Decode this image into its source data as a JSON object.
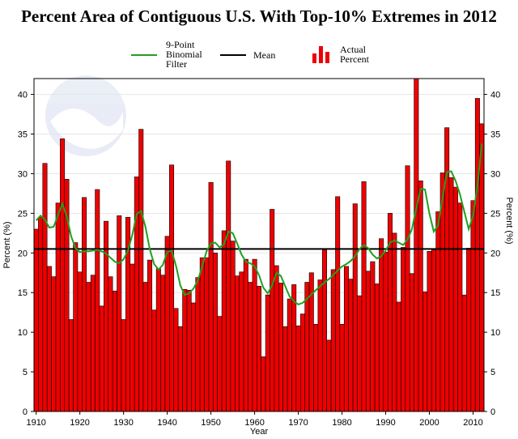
{
  "chart_data": {
    "type": "bar",
    "title": "Percent Area of Contiguous U.S. With Top-10% Extremes in 2012",
    "xlabel": "Year",
    "ylabel_left": "Percent (%)",
    "ylabel_right": "Percent (%)",
    "xlim": [
      1910,
      2012
    ],
    "ylim": [
      0,
      42
    ],
    "x_ticks": [
      1910,
      1920,
      1930,
      1940,
      1950,
      1960,
      1970,
      1980,
      1990,
      2000,
      2010
    ],
    "y_ticks": [
      0,
      5,
      10,
      15,
      20,
      25,
      30,
      35,
      40
    ],
    "grid": true,
    "legend": {
      "position": "top",
      "entries": [
        {
          "label": "9-Point\nBinomial\nFilter",
          "color": "#20a020",
          "kind": "line"
        },
        {
          "label": "Mean",
          "color": "#000000",
          "kind": "line"
        },
        {
          "label": "Actual\nPercent",
          "color": "#ee0000",
          "kind": "bar"
        }
      ]
    },
    "mean": 20.5,
    "series": [
      {
        "name": "Actual Percent",
        "color": "#ee0000",
        "x": [
          1910,
          1911,
          1912,
          1913,
          1914,
          1915,
          1916,
          1917,
          1918,
          1919,
          1920,
          1921,
          1922,
          1923,
          1924,
          1925,
          1926,
          1927,
          1928,
          1929,
          1930,
          1931,
          1932,
          1933,
          1934,
          1935,
          1936,
          1937,
          1938,
          1939,
          1940,
          1941,
          1942,
          1943,
          1944,
          1945,
          1946,
          1947,
          1948,
          1949,
          1950,
          1951,
          1952,
          1953,
          1954,
          1955,
          1956,
          1957,
          1958,
          1959,
          1960,
          1961,
          1962,
          1963,
          1964,
          1965,
          1966,
          1967,
          1968,
          1969,
          1970,
          1971,
          1972,
          1973,
          1974,
          1975,
          1976,
          1977,
          1978,
          1979,
          1980,
          1981,
          1982,
          1983,
          1984,
          1985,
          1986,
          1987,
          1988,
          1989,
          1990,
          1991,
          1992,
          1993,
          1994,
          1995,
          1996,
          1997,
          1998,
          1999,
          2000,
          2001,
          2002,
          2003,
          2004,
          2005,
          2006,
          2007,
          2008,
          2009,
          2010,
          2011,
          2012
        ],
        "values": [
          23,
          24.5,
          31.3,
          18.3,
          17,
          26.3,
          34.4,
          29.3,
          11.6,
          21.3,
          17.6,
          27,
          16.3,
          17.2,
          28,
          13.3,
          24,
          17,
          15.2,
          24.7,
          11.6,
          24.5,
          18.6,
          29.6,
          35.6,
          16.3,
          19.1,
          12.8,
          18,
          17.2,
          22.1,
          31.1,
          13,
          10.7,
          15.4,
          15.3,
          13.7,
          16.9,
          19.4,
          19.4,
          28.9,
          20,
          12,
          22.8,
          31.6,
          21.5,
          17.1,
          17.6,
          19.2,
          16.3,
          19.2,
          15.8,
          6.9,
          14.7,
          25.5,
          18.4,
          16.2,
          10.7,
          14.2,
          16,
          10.8,
          12.3,
          16.3,
          17.5,
          11,
          16.6,
          20.4,
          9,
          17.9,
          27.1,
          11,
          18.3,
          16.7,
          26.2,
          14.6,
          29,
          17.7,
          18.9,
          16.1,
          21.8,
          20.1,
          25,
          22.5,
          13.8,
          20.7,
          31,
          17.4,
          42.6,
          29.1,
          15.1,
          20.2,
          20.4,
          25.2,
          30.1,
          35.8,
          29.5,
          28.3,
          26.3,
          14.7,
          20.6,
          26.6,
          39.5,
          36.3
        ]
      },
      {
        "name": "9-Point Binomial Filter",
        "color": "#20a020",
        "x": [
          1910,
          1911,
          1912,
          1913,
          1914,
          1915,
          1916,
          1917,
          1918,
          1919,
          1920,
          1921,
          1922,
          1923,
          1924,
          1925,
          1926,
          1927,
          1928,
          1929,
          1930,
          1931,
          1932,
          1933,
          1934,
          1935,
          1936,
          1937,
          1938,
          1939,
          1940,
          1941,
          1942,
          1943,
          1944,
          1945,
          1946,
          1947,
          1948,
          1949,
          1950,
          1951,
          1952,
          1953,
          1954,
          1955,
          1956,
          1957,
          1958,
          1959,
          1960,
          1961,
          1962,
          1963,
          1964,
          1965,
          1966,
          1967,
          1968,
          1969,
          1970,
          1971,
          1972,
          1973,
          1974,
          1975,
          1976,
          1977,
          1978,
          1979,
          1980,
          1981,
          1982,
          1983,
          1984,
          1985,
          1986,
          1987,
          1988,
          1989,
          1990,
          1991,
          1992,
          1993,
          1994,
          1995,
          1996,
          1997,
          1998,
          1999,
          2000,
          2001,
          2002,
          2003,
          2004,
          2005,
          2006,
          2007,
          2008,
          2009,
          2010,
          2011,
          2012
        ],
        "values": [
          24.1,
          24.7,
          24.2,
          23.2,
          23.3,
          24.8,
          26.2,
          24.6,
          22.1,
          20.6,
          20.1,
          20.2,
          20.2,
          20.3,
          20.4,
          20.2,
          19.9,
          19.4,
          18.9,
          18.7,
          19.2,
          20.3,
          22.3,
          24.9,
          25.3,
          23.3,
          20.5,
          18.6,
          17.9,
          18.5,
          20.1,
          20.3,
          18.4,
          15.9,
          14.7,
          14.9,
          15.5,
          16.5,
          18.3,
          20.2,
          21.2,
          21.3,
          20.7,
          21.1,
          22.7,
          22.5,
          21.2,
          19.8,
          18.9,
          18.7,
          18.3,
          17.2,
          15.6,
          14.9,
          15.9,
          17.5,
          17.1,
          15.8,
          14.5,
          13.9,
          13.5,
          13.7,
          14.2,
          14.8,
          15.3,
          15.8,
          16.3,
          16.7,
          17.2,
          17.8,
          18.3,
          18.6,
          19,
          19.6,
          20.5,
          21,
          20.6,
          19.8,
          19.3,
          19.6,
          20.3,
          21.3,
          21.6,
          21.3,
          21,
          21.7,
          23,
          25.6,
          28.1,
          28,
          25,
          22.7,
          23.5,
          26.9,
          30.2,
          30.3,
          29.1,
          27.4,
          25.2,
          23,
          24.7,
          28.5,
          33.8
        ]
      }
    ]
  }
}
